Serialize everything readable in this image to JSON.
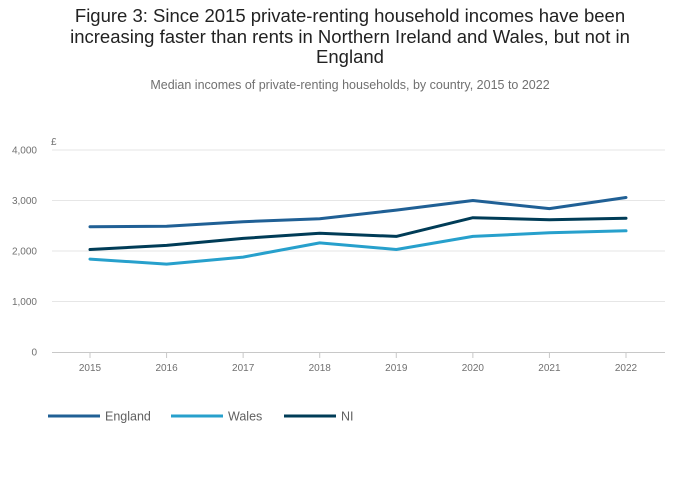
{
  "chart_data": {
    "type": "line",
    "title": "Figure 3: Since 2015 private-renting household incomes have been increasing faster than rents in Northern Ireland and Wales, but not in England",
    "subtitle": "Median incomes of private-renting households, by country, 2015 to 2022",
    "ylabel": "£",
    "xlabel": "",
    "ylim": [
      0,
      4000
    ],
    "yticks": [
      0,
      1000,
      2000,
      3000,
      4000
    ],
    "ytick_labels": [
      "0",
      "1,000",
      "2,000",
      "3,000",
      "4,000"
    ],
    "categories": [
      "2015",
      "2016",
      "2017",
      "2018",
      "2019",
      "2020",
      "2021",
      "2022"
    ],
    "series": [
      {
        "name": "England",
        "color": "#206095",
        "values": [
          2480,
          2490,
          2580,
          2640,
          2810,
          3000,
          2840,
          3060
        ]
      },
      {
        "name": "Wales",
        "color": "#27a0cc",
        "values": [
          1840,
          1740,
          1880,
          2160,
          2030,
          2290,
          2360,
          2400
        ]
      },
      {
        "name": "NI",
        "color": "#003c57",
        "values": [
          2030,
          2110,
          2250,
          2350,
          2290,
          2660,
          2620,
          2650
        ]
      }
    ],
    "legend_position": "bottom-left",
    "grid": true
  }
}
